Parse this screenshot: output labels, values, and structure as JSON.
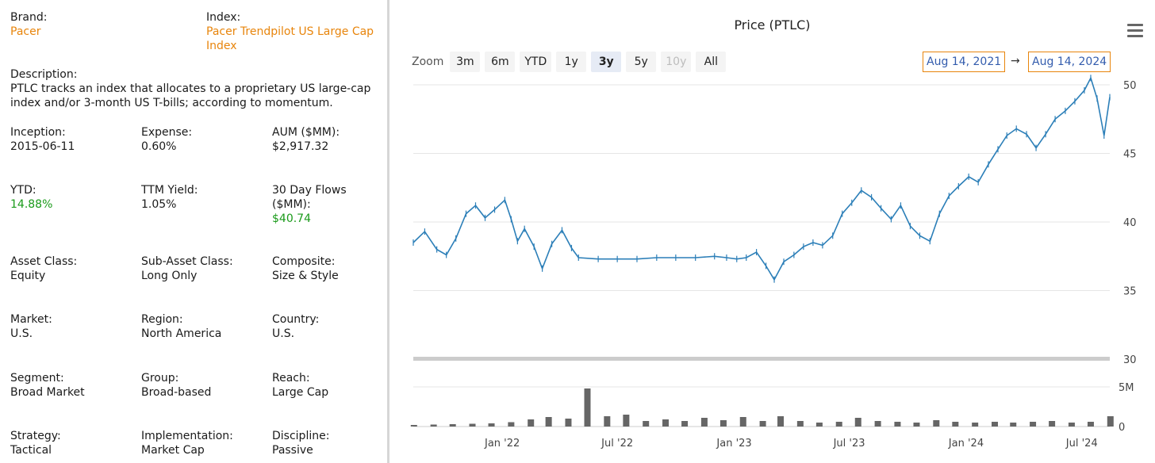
{
  "info": {
    "brand": {
      "label": "Brand:",
      "value": "Pacer"
    },
    "index": {
      "label": "Index:",
      "value1": "Pacer Trendpilot US Large Cap",
      "value2": "Index"
    },
    "description": {
      "label": "Description:",
      "line1": "PTLC tracks an index that allocates to a proprietary US large-cap",
      "line2": "index and/or 3-month US T-bills; according to momentum."
    },
    "inception": {
      "label": "Inception:",
      "value": "2015-06-11"
    },
    "expense": {
      "label": "Expense:",
      "value": "0.60%"
    },
    "aum": {
      "label": "AUM ($MM):",
      "value": "$2,917.32"
    },
    "ytd": {
      "label": "YTD:",
      "value": "14.88%"
    },
    "ttm_yield": {
      "label": "TTM Yield:",
      "value": "1.05%"
    },
    "flows": {
      "label1": "30 Day Flows",
      "label2": "($MM):",
      "value": "$40.74"
    },
    "asset_class": {
      "label": "Asset Class:",
      "value": "Equity"
    },
    "sub_asset_class": {
      "label": "Sub-Asset Class:",
      "value": "Long Only"
    },
    "composite": {
      "label": "Composite:",
      "value": "Size & Style"
    },
    "market": {
      "label": "Market:",
      "value": "U.S."
    },
    "region": {
      "label": "Region:",
      "value": "North America"
    },
    "country": {
      "label": "Country:",
      "value": "U.S."
    },
    "segment": {
      "label": "Segment:",
      "value": "Broad Market"
    },
    "group": {
      "label": "Group:",
      "value": "Broad-based"
    },
    "reach": {
      "label": "Reach:",
      "value": "Large Cap"
    },
    "strategy": {
      "label": "Strategy:",
      "value": "Tactical"
    },
    "implementation": {
      "label": "Implementation:",
      "value": "Market Cap"
    },
    "discipline": {
      "label": "Discipline:",
      "value": "Passive"
    }
  },
  "colors": {
    "accent": "#e8850c",
    "positive": "#1a9a1a",
    "series": "#2c7fb8",
    "volume": "#666666"
  },
  "toolbar": {
    "zoom_label": "Zoom",
    "buttons": [
      "3m",
      "6m",
      "YTD",
      "1y",
      "3y",
      "5y",
      "10y",
      "All"
    ],
    "active": "3y",
    "disabled": [
      "10y"
    ],
    "from_date": "Aug 14, 2021",
    "arrow": "→",
    "to_date": "Aug 14, 2024",
    "menu_icon": "hamburger-menu-icon"
  },
  "chart_data": {
    "type": "line",
    "title": "Price (PTLC)",
    "x_tick_labels": [
      "Jan '22",
      "Jul '22",
      "Jan '23",
      "Jul '23",
      "Jan '24",
      "Jul '24"
    ],
    "price_axis": {
      "ticks": [
        50,
        45,
        40,
        35,
        30
      ],
      "ylim": [
        30,
        50
      ]
    },
    "volume_axis": {
      "ticks": [
        "5M",
        "0"
      ],
      "ylim": [
        0,
        5000000
      ]
    },
    "grid": true,
    "price_series": {
      "name": "PTLC",
      "x": [
        "2021-08-14",
        "2021-09-01",
        "2021-09-20",
        "2021-10-05",
        "2021-10-20",
        "2021-11-05",
        "2021-11-20",
        "2021-12-05",
        "2021-12-20",
        "2022-01-05",
        "2022-01-15",
        "2022-01-25",
        "2022-02-05",
        "2022-02-20",
        "2022-03-05",
        "2022-03-20",
        "2022-04-05",
        "2022-04-20",
        "2022-05-01",
        "2022-06-01",
        "2022-07-01",
        "2022-08-01",
        "2022-09-01",
        "2022-10-01",
        "2022-11-01",
        "2022-12-01",
        "2022-12-20",
        "2023-01-05",
        "2023-01-20",
        "2023-02-05",
        "2023-02-20",
        "2023-03-05",
        "2023-03-20",
        "2023-04-05",
        "2023-04-20",
        "2023-05-05",
        "2023-05-20",
        "2023-06-05",
        "2023-06-20",
        "2023-07-05",
        "2023-07-20",
        "2023-08-05",
        "2023-08-20",
        "2023-09-05",
        "2023-09-20",
        "2023-10-05",
        "2023-10-20",
        "2023-11-05",
        "2023-11-20",
        "2023-12-05",
        "2023-12-20",
        "2024-01-05",
        "2024-01-20",
        "2024-02-05",
        "2024-02-20",
        "2024-03-05",
        "2024-03-20",
        "2024-04-05",
        "2024-04-20",
        "2024-05-05",
        "2024-05-20",
        "2024-06-05",
        "2024-06-20",
        "2024-07-05",
        "2024-07-15",
        "2024-07-25",
        "2024-08-05",
        "2024-08-14"
      ],
      "values": [
        38.5,
        39.3,
        38.0,
        37.6,
        38.8,
        40.6,
        41.2,
        40.3,
        40.9,
        41.6,
        40.2,
        38.6,
        39.5,
        38.2,
        36.6,
        38.4,
        39.4,
        38.1,
        37.4,
        37.3,
        37.3,
        37.3,
        37.4,
        37.4,
        37.4,
        37.5,
        37.4,
        37.3,
        37.4,
        37.8,
        36.8,
        35.8,
        37.1,
        37.6,
        38.2,
        38.5,
        38.3,
        39.0,
        40.6,
        41.4,
        42.3,
        41.8,
        41.0,
        40.2,
        41.2,
        39.7,
        39.0,
        38.6,
        40.6,
        41.9,
        42.6,
        43.3,
        42.9,
        44.2,
        45.3,
        46.3,
        46.8,
        46.4,
        45.4,
        46.4,
        47.5,
        48.1,
        48.8,
        49.6,
        50.5,
        49.0,
        46.3,
        49.1
      ]
    },
    "volume_series": {
      "name": "Volume",
      "x": [
        "2021-08",
        "2021-09",
        "2021-10",
        "2021-11",
        "2021-12",
        "2022-01",
        "2022-02",
        "2022-03",
        "2022-04",
        "2022-05",
        "2022-06",
        "2022-07",
        "2022-08",
        "2022-09",
        "2022-10",
        "2022-11",
        "2022-12",
        "2023-01",
        "2023-02",
        "2023-03",
        "2023-04",
        "2023-05",
        "2023-06",
        "2023-07",
        "2023-08",
        "2023-09",
        "2023-10",
        "2023-11",
        "2023-12",
        "2024-01",
        "2024-02",
        "2024-03",
        "2024-04",
        "2024-05",
        "2024-06",
        "2024-07",
        "2024-08"
      ],
      "values": [
        200000,
        250000,
        300000,
        350000,
        400000,
        550000,
        900000,
        1200000,
        1000000,
        4800000,
        1300000,
        1500000,
        700000,
        900000,
        700000,
        1100000,
        800000,
        1200000,
        700000,
        1300000,
        700000,
        500000,
        600000,
        1100000,
        700000,
        600000,
        500000,
        800000,
        600000,
        500000,
        600000,
        500000,
        600000,
        700000,
        500000,
        600000,
        1300000
      ]
    }
  }
}
